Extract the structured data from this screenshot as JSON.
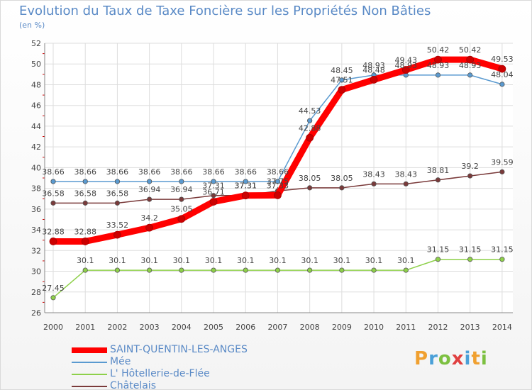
{
  "chart_data": {
    "type": "line",
    "title": "Evolution du Taux de Taxe Foncière sur les Propriétés Non Bâties",
    "unit_label": "(en %)",
    "ylim": [
      26,
      52
    ],
    "y_ticks": [
      "26",
      "28",
      "30",
      "32",
      "34",
      "36",
      "38",
      "40",
      "42",
      "44",
      "46",
      "48",
      "50",
      "52"
    ],
    "categories": [
      "2000",
      "2001",
      "2002",
      "2003",
      "2004",
      "2005",
      "2006",
      "2007",
      "2008",
      "2009",
      "2010",
      "2011",
      "2012",
      "2013",
      "2014"
    ],
    "grid": true,
    "series": [
      {
        "name": "SAINT-QUENTIN-LES-ANGES",
        "color": "#ff0000",
        "values": [
          32.88,
          32.88,
          33.52,
          34.2,
          35.05,
          36.71,
          37.31,
          37.33,
          42.88,
          47.51,
          48.48,
          49.43,
          50.42,
          50.42,
          49.53
        ],
        "labels": [
          "32.88",
          "32.88",
          "33.52",
          "34.2",
          "35.05",
          "36.71",
          "37.31",
          "37.33",
          "42.88",
          "47.51",
          "48.48",
          "49.43",
          "50.42",
          "50.42",
          "49.53"
        ]
      },
      {
        "name": "Mée",
        "color": "#5a9ad0",
        "values": [
          38.66,
          38.66,
          38.66,
          38.66,
          38.66,
          38.66,
          38.66,
          38.66,
          44.53,
          48.45,
          48.93,
          48.93,
          48.93,
          48.93,
          48.04
        ],
        "labels": [
          "38.66",
          "38.66",
          "38.66",
          "38.66",
          "38.66",
          "38.66",
          "38.66",
          "38.66",
          "44.53",
          "48.45",
          "48.93",
          "48.93",
          "48.93",
          "48.93",
          "48.04"
        ]
      },
      {
        "name": "L' Hôtellerie-de-Flée",
        "color": "#8ed04a",
        "values": [
          27.45,
          30.1,
          30.1,
          30.1,
          30.1,
          30.1,
          30.1,
          30.1,
          30.1,
          30.1,
          30.1,
          30.1,
          31.15,
          31.15,
          31.15
        ],
        "labels": [
          "27.45",
          "30.1",
          "30.1",
          "30.1",
          "30.1",
          "30.1",
          "30.1",
          "30.1",
          "30.1",
          "30.1",
          "30.1",
          "30.1",
          "31.15",
          "31.15",
          "31.15"
        ]
      },
      {
        "name": "Châtelais",
        "color": "#7a3a3a",
        "values": [
          36.58,
          36.58,
          36.58,
          36.94,
          36.94,
          37.31,
          37.31,
          37.75,
          38.05,
          38.05,
          38.43,
          38.43,
          38.81,
          39.2,
          39.59
        ],
        "labels": [
          "36.58",
          "36.58",
          "36.58",
          "36.94",
          "36.94",
          "37.31",
          "37.31",
          "37.75",
          "38.05",
          "38.05",
          "38.43",
          "38.43",
          "38.81",
          "39.2",
          "39.59"
        ]
      }
    ]
  },
  "logo": {
    "letters": [
      "P",
      "r",
      "o",
      "x",
      "i",
      "t",
      "i"
    ]
  }
}
